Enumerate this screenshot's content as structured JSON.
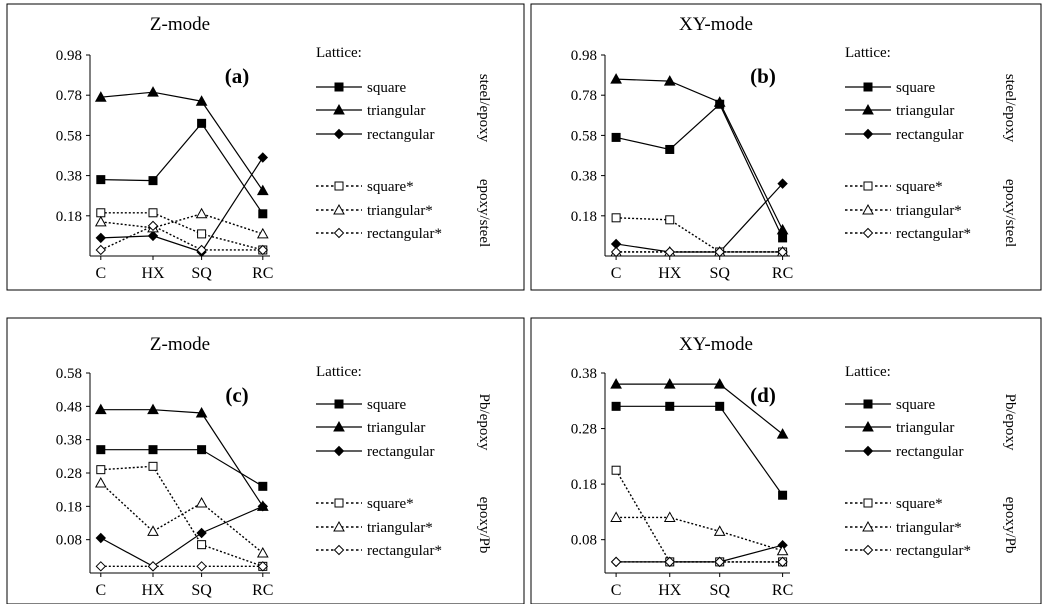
{
  "panels": [
    {
      "id": "a",
      "title": "Z-mode",
      "panel_label": "(a)",
      "legend_heading": "Lattice:",
      "side_labels": [
        "steel/epoxy",
        "epoxy/steel"
      ]
    },
    {
      "id": "b",
      "title": "XY-mode",
      "panel_label": "(b)",
      "legend_heading": "Lattice:",
      "side_labels": [
        "steel/epoxy",
        "epoxy/steel"
      ]
    },
    {
      "id": "c",
      "title": "Z-mode",
      "panel_label": "(c)",
      "legend_heading": "Lattice:",
      "side_labels": [
        "Pb/epoxy",
        "epoxy/Pb"
      ]
    },
    {
      "id": "d",
      "title": "XY-mode",
      "panel_label": "(d)",
      "legend_heading": "Lattice:",
      "side_labels": [
        "Pb/epoxy",
        "epoxy/Pb"
      ]
    }
  ],
  "legend_entries": [
    {
      "label": "square",
      "marker": "square",
      "filled": true,
      "dashed": false
    },
    {
      "label": "triangular",
      "marker": "triangle",
      "filled": true,
      "dashed": false
    },
    {
      "label": "rectangular",
      "marker": "diamond",
      "filled": true,
      "dashed": false
    },
    {
      "label": "square*",
      "marker": "square",
      "filled": false,
      "dashed": true
    },
    {
      "label": "triangular*",
      "marker": "triangle",
      "filled": false,
      "dashed": true
    },
    {
      "label": "rectangular*",
      "marker": "diamond",
      "filled": false,
      "dashed": true
    }
  ],
  "chart_data": [
    {
      "type": "line",
      "panel": "a",
      "title": "Z-mode",
      "categories": [
        "C",
        "HX",
        "SQ",
        "RC"
      ],
      "yticks": [
        0.18,
        0.38,
        0.58,
        0.78,
        0.98
      ],
      "ylim": [
        -0.02,
        0.98
      ],
      "legend_position": "right",
      "series": [
        {
          "name": "square",
          "values": [
            0.36,
            0.355,
            0.64,
            0.19
          ]
        },
        {
          "name": "triangular",
          "values": [
            0.77,
            0.795,
            0.75,
            0.305
          ]
        },
        {
          "name": "rectangular",
          "values": [
            0.07,
            0.08,
            0.0,
            0.47
          ]
        },
        {
          "name": "square*",
          "values": [
            0.195,
            0.195,
            0.09,
            0.01
          ]
        },
        {
          "name": "triangular*",
          "values": [
            0.15,
            0.12,
            0.19,
            0.09
          ]
        },
        {
          "name": "rectangular*",
          "values": [
            0.01,
            0.13,
            0.01,
            0.01
          ]
        }
      ]
    },
    {
      "type": "line",
      "panel": "b",
      "title": "XY-mode",
      "categories": [
        "C",
        "HX",
        "SQ",
        "RC"
      ],
      "yticks": [
        0.18,
        0.38,
        0.58,
        0.78,
        0.98
      ],
      "ylim": [
        -0.02,
        0.98
      ],
      "legend_position": "right",
      "series": [
        {
          "name": "square",
          "values": [
            0.57,
            0.51,
            0.735,
            0.07
          ]
        },
        {
          "name": "triangular",
          "values": [
            0.86,
            0.85,
            0.745,
            0.11
          ]
        },
        {
          "name": "rectangular",
          "values": [
            0.04,
            0.0,
            0.0,
            0.34
          ]
        },
        {
          "name": "square*",
          "values": [
            0.17,
            0.16,
            0.0,
            0.0
          ]
        },
        {
          "name": "triangular*",
          "values": [
            0.0,
            0.0,
            0.0,
            0.0
          ]
        },
        {
          "name": "rectangular*",
          "values": [
            0.0,
            0.0,
            0.0,
            0.0
          ]
        }
      ]
    },
    {
      "type": "line",
      "panel": "c",
      "title": "Z-mode",
      "categories": [
        "C",
        "HX",
        "SQ",
        "RC"
      ],
      "yticks": [
        0.08,
        0.18,
        0.28,
        0.38,
        0.48,
        0.58
      ],
      "ylim": [
        -0.02,
        0.58
      ],
      "legend_position": "right",
      "series": [
        {
          "name": "square",
          "values": [
            0.35,
            0.35,
            0.35,
            0.24
          ]
        },
        {
          "name": "triangular",
          "values": [
            0.47,
            0.47,
            0.46,
            0.18
          ]
        },
        {
          "name": "rectangular",
          "values": [
            0.085,
            0.0,
            0.1,
            0.18
          ]
        },
        {
          "name": "square*",
          "values": [
            0.29,
            0.3,
            0.065,
            0.0
          ]
        },
        {
          "name": "triangular*",
          "values": [
            0.25,
            0.105,
            0.19,
            0.04
          ]
        },
        {
          "name": "rectangular*",
          "values": [
            0.0,
            0.0,
            0.0,
            0.0
          ]
        }
      ]
    },
    {
      "type": "line",
      "panel": "d",
      "title": "XY-mode",
      "categories": [
        "C",
        "HX",
        "SQ",
        "RC"
      ],
      "yticks": [
        0.08,
        0.18,
        0.28,
        0.38
      ],
      "ylim": [
        0.02,
        0.38
      ],
      "legend_position": "right",
      "series": [
        {
          "name": "square",
          "values": [
            0.32,
            0.32,
            0.32,
            0.16
          ]
        },
        {
          "name": "triangular",
          "values": [
            0.36,
            0.36,
            0.36,
            0.27
          ]
        },
        {
          "name": "rectangular",
          "values": [
            0.04,
            0.04,
            0.04,
            0.07
          ]
        },
        {
          "name": "square*",
          "values": [
            0.205,
            0.04,
            0.04,
            0.04
          ]
        },
        {
          "name": "triangular*",
          "values": [
            0.12,
            0.12,
            0.095,
            0.06
          ]
        },
        {
          "name": "rectangular*",
          "values": [
            0.04,
            0.04,
            0.04,
            0.04
          ]
        }
      ]
    }
  ]
}
